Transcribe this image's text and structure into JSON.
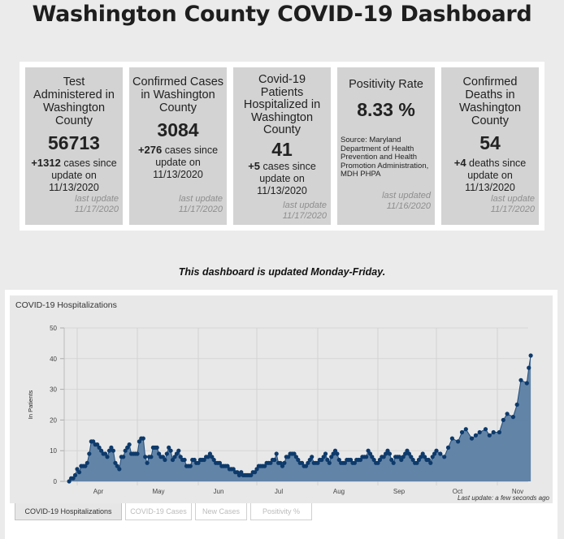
{
  "header": {
    "title": "Washington County COVID-19 Dashboard"
  },
  "cards": [
    {
      "title": "Test Administered in Washington County",
      "value": "56713",
      "delta": "+1312",
      "delta_text": " cases since update on 11/13/2020",
      "updated": "last update 11/17/2020"
    },
    {
      "title": "Confirmed Cases in Washington County",
      "value": "3084",
      "delta": "+276",
      "delta_text": " cases since update on 11/13/2020",
      "updated": "last update 11/17/2020"
    },
    {
      "title": "Covid-19 Patients Hospitalized in Washington County",
      "value": "41",
      "delta": "+5",
      "delta_text": " cases since update on 11/13/2020",
      "updated": "last update 11/17/2020"
    },
    {
      "title": "Positivity Rate",
      "value": "8.33 %",
      "source": "Source: Maryland Department of Health Prevention and Health Promotion Administration, MDH PHPA",
      "updated": "last updated 11/16/2020"
    },
    {
      "title": "Confirmed Deaths in Washington County",
      "value": "54",
      "delta": "+4",
      "delta_text": " deaths since update on 11/13/2020",
      "updated": "last update 11/17/2020"
    }
  ],
  "notice": "This dashboard is updated Monday-Friday.",
  "chart_panel": {
    "title": "COVID-19 Hospitalizations",
    "last_update": "Last update: a few seconds ago",
    "tabs": [
      {
        "label": "COVID-19 Hospitalizations",
        "active": true
      },
      {
        "label": "COVID-19 Cases",
        "active": false
      },
      {
        "label": "New Cases",
        "active": false
      },
      {
        "label": "Positivity %",
        "active": false
      }
    ]
  },
  "colors": {
    "fill": "#5b7ea3",
    "line": "#1f4a78",
    "point": "#0d3a6b"
  },
  "chart_data": {
    "type": "area",
    "title": "COVID-19 Hospitalizations",
    "xlabel": "",
    "ylabel": "In Patients",
    "ylim": [
      0,
      50
    ],
    "yticks": [
      0,
      10,
      20,
      30,
      40,
      50
    ],
    "xticks": [
      "Apr",
      "May",
      "Jun",
      "Jul",
      "Aug",
      "Sep",
      "Oct",
      "Nov"
    ],
    "xrange_days": [
      -4,
      231
    ],
    "grid": true,
    "legend": "none",
    "series": [
      {
        "name": "In Patients",
        "x_days_since_apr1": [
          -4,
          -3,
          -2,
          -1,
          0,
          1,
          2,
          3,
          4,
          5,
          6,
          7,
          8,
          9,
          10,
          11,
          12,
          13,
          14,
          15,
          16,
          17,
          18,
          19,
          20,
          21,
          22,
          23,
          24,
          25,
          26,
          27,
          28,
          29,
          30,
          31,
          32,
          33,
          34,
          35,
          36,
          37,
          38,
          39,
          40,
          41,
          42,
          43,
          44,
          45,
          46,
          47,
          48,
          49,
          50,
          51,
          52,
          53,
          54,
          55,
          56,
          57,
          58,
          59,
          60,
          61,
          62,
          63,
          64,
          65,
          66,
          67,
          68,
          69,
          70,
          71,
          72,
          73,
          74,
          75,
          76,
          77,
          78,
          79,
          80,
          81,
          82,
          83,
          84,
          85,
          86,
          87,
          88,
          89,
          90,
          91,
          92,
          93,
          94,
          95,
          96,
          97,
          98,
          99,
          100,
          101,
          102,
          103,
          104,
          105,
          106,
          107,
          108,
          109,
          110,
          111,
          112,
          113,
          114,
          115,
          116,
          117,
          118,
          119,
          120,
          121,
          122,
          123,
          124,
          125,
          126,
          127,
          128,
          129,
          130,
          131,
          132,
          133,
          134,
          135,
          136,
          137,
          138,
          139,
          140,
          141,
          142,
          143,
          144,
          145,
          146,
          147,
          148,
          149,
          150,
          151,
          152,
          153,
          154,
          155,
          156,
          157,
          158,
          159,
          160,
          161,
          162,
          163,
          164,
          165,
          166,
          167,
          168,
          169,
          170,
          171,
          172,
          173,
          174,
          175,
          176,
          177,
          178,
          179,
          180,
          181,
          182,
          183,
          185,
          187,
          189,
          191,
          194,
          196,
          198,
          201,
          203,
          205,
          208,
          210,
          212,
          215,
          217,
          219,
          222,
          224,
          226,
          229,
          230,
          231
        ],
        "values": [
          0,
          1,
          1,
          2,
          4,
          3,
          5,
          5,
          5,
          6,
          9,
          13,
          13,
          12,
          12,
          11,
          10,
          9,
          9,
          8,
          10,
          11,
          10,
          6,
          5,
          4,
          8,
          8,
          10,
          11,
          12,
          9,
          9,
          9,
          9,
          13,
          14,
          14,
          8,
          6,
          8,
          8,
          11,
          11,
          11,
          9,
          8,
          8,
          7,
          9,
          11,
          10,
          7,
          8,
          9,
          10,
          8,
          7,
          7,
          5,
          5,
          5,
          7,
          7,
          6,
          6,
          7,
          7,
          7,
          8,
          8,
          9,
          8,
          7,
          6,
          6,
          6,
          5,
          5,
          5,
          5,
          4,
          4,
          4,
          3,
          3,
          2,
          3,
          2,
          2,
          2,
          2,
          2,
          3,
          3,
          4,
          5,
          5,
          5,
          5,
          6,
          6,
          6,
          7,
          7,
          9,
          6,
          6,
          5,
          6,
          8,
          8,
          9,
          9,
          9,
          8,
          7,
          6,
          6,
          5,
          5,
          6,
          7,
          8,
          6,
          6,
          6,
          7,
          7,
          8,
          9,
          7,
          6,
          8,
          9,
          10,
          9,
          7,
          6,
          6,
          6,
          7,
          7,
          7,
          6,
          6,
          7,
          7,
          7,
          8,
          8,
          8,
          10,
          9,
          8,
          7,
          6,
          6,
          7,
          8,
          8,
          9,
          10,
          9,
          7,
          6,
          8,
          8,
          8,
          7,
          8,
          9,
          10,
          9,
          8,
          7,
          6,
          6,
          7,
          8,
          9,
          8,
          7,
          7,
          6,
          8,
          9,
          10,
          9,
          8,
          11,
          14,
          13,
          16,
          17,
          14,
          15,
          16,
          17,
          15,
          16,
          16,
          20,
          22,
          21,
          25,
          33,
          32,
          37,
          41
        ]
      }
    ]
  }
}
